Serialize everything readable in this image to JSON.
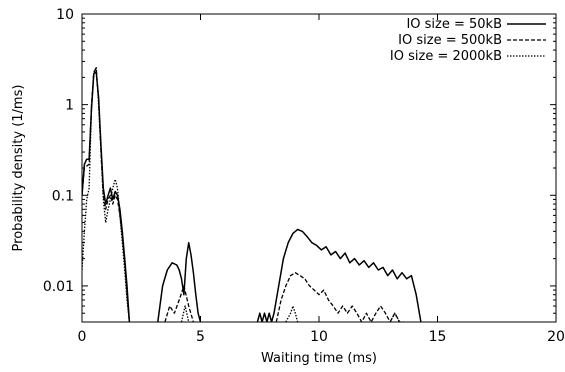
{
  "chart_data": {
    "type": "line",
    "xlabel": "Waiting time (ms)",
    "ylabel": "Probability density (1/ms)",
    "xlim": [
      0,
      20
    ],
    "ylim": [
      0.004,
      10
    ],
    "yscale": "log",
    "grid": false,
    "legend_position": "top-right",
    "x_ticks": [
      0,
      5,
      10,
      15,
      20
    ],
    "x_tick_labels": [
      "0",
      "5",
      "10",
      "15",
      "20"
    ],
    "y_ticks": [
      0.01,
      0.1,
      1,
      10
    ],
    "y_tick_labels": [
      "0.01",
      "0.1",
      "1",
      "10"
    ],
    "series": [
      {
        "name": "IO size = 50kB",
        "style": "solid",
        "segments": [
          [
            [
              0,
              0.1
            ],
            [
              0.1,
              0.22
            ],
            [
              0.2,
              0.25
            ],
            [
              0.3,
              0.25
            ],
            [
              0.4,
              0.9
            ],
            [
              0.5,
              2.2
            ],
            [
              0.6,
              2.3
            ],
            [
              0.7,
              1.2
            ],
            [
              0.8,
              0.35
            ],
            [
              0.9,
              0.12
            ],
            [
              1.0,
              0.08
            ],
            [
              1.1,
              0.1
            ],
            [
              1.2,
              0.12
            ],
            [
              1.3,
              0.09
            ],
            [
              1.4,
              0.11
            ],
            [
              1.5,
              0.1
            ],
            [
              1.6,
              0.07
            ],
            [
              1.7,
              0.04
            ],
            [
              1.8,
              0.02
            ],
            [
              1.9,
              0.01
            ],
            [
              2.0,
              0.004
            ]
          ],
          [
            [
              3.2,
              0.004
            ],
            [
              3.4,
              0.01
            ],
            [
              3.6,
              0.015
            ],
            [
              3.8,
              0.018
            ],
            [
              4.0,
              0.017
            ],
            [
              4.1,
              0.015
            ],
            [
              4.2,
              0.012
            ],
            [
              4.3,
              0.008
            ],
            [
              4.4,
              0.02
            ],
            [
              4.5,
              0.03
            ],
            [
              4.6,
              0.022
            ],
            [
              4.7,
              0.014
            ],
            [
              4.8,
              0.008
            ],
            [
              4.9,
              0.005
            ],
            [
              5.0,
              0.004
            ]
          ],
          [
            [
              7.4,
              0.004
            ],
            [
              7.5,
              0.005
            ],
            [
              7.6,
              0.004
            ],
            [
              7.7,
              0.005
            ],
            [
              7.8,
              0.004
            ],
            [
              7.9,
              0.005
            ],
            [
              8.0,
              0.004
            ],
            [
              8.1,
              0.005
            ],
            [
              8.3,
              0.01
            ],
            [
              8.5,
              0.02
            ],
            [
              8.7,
              0.03
            ],
            [
              8.9,
              0.038
            ],
            [
              9.1,
              0.042
            ],
            [
              9.3,
              0.04
            ],
            [
              9.5,
              0.035
            ],
            [
              9.7,
              0.03
            ],
            [
              9.9,
              0.028
            ],
            [
              10.1,
              0.025
            ],
            [
              10.3,
              0.027
            ],
            [
              10.5,
              0.022
            ],
            [
              10.7,
              0.024
            ],
            [
              10.9,
              0.02
            ],
            [
              11.1,
              0.023
            ],
            [
              11.3,
              0.018
            ],
            [
              11.5,
              0.02
            ],
            [
              11.7,
              0.017
            ],
            [
              11.9,
              0.019
            ],
            [
              12.1,
              0.016
            ],
            [
              12.3,
              0.018
            ],
            [
              12.5,
              0.015
            ],
            [
              12.7,
              0.016
            ],
            [
              12.9,
              0.013
            ],
            [
              13.1,
              0.015
            ],
            [
              13.3,
              0.012
            ],
            [
              13.5,
              0.014
            ],
            [
              13.7,
              0.012
            ],
            [
              13.9,
              0.013
            ],
            [
              14.1,
              0.008
            ],
            [
              14.3,
              0.004
            ]
          ]
        ]
      },
      {
        "name": "IO size = 500kB",
        "style": "dashed",
        "segments": [
          [
            [
              0,
              0.1
            ],
            [
              0.1,
              0.2
            ],
            [
              0.2,
              0.21
            ],
            [
              0.3,
              0.22
            ],
            [
              0.4,
              1.0
            ],
            [
              0.5,
              2.3
            ],
            [
              0.6,
              2.5
            ],
            [
              0.7,
              1.1
            ],
            [
              0.8,
              0.3
            ],
            [
              0.9,
              0.1
            ],
            [
              1.0,
              0.07
            ],
            [
              1.1,
              0.09
            ],
            [
              1.2,
              0.1
            ],
            [
              1.3,
              0.08
            ],
            [
              1.4,
              0.1
            ],
            [
              1.5,
              0.09
            ],
            [
              1.6,
              0.06
            ],
            [
              1.7,
              0.035
            ],
            [
              1.8,
              0.018
            ],
            [
              1.9,
              0.008
            ],
            [
              2.0,
              0.004
            ]
          ],
          [
            [
              3.5,
              0.004
            ],
            [
              3.7,
              0.006
            ],
            [
              3.9,
              0.005
            ],
            [
              4.1,
              0.007
            ],
            [
              4.3,
              0.01
            ],
            [
              4.5,
              0.006
            ],
            [
              4.7,
              0.004
            ]
          ],
          [
            [
              8.2,
              0.004
            ],
            [
              8.4,
              0.007
            ],
            [
              8.6,
              0.01
            ],
            [
              8.8,
              0.013
            ],
            [
              9.0,
              0.014
            ],
            [
              9.2,
              0.013
            ],
            [
              9.4,
              0.012
            ],
            [
              9.6,
              0.01
            ],
            [
              9.8,
              0.009
            ],
            [
              10.0,
              0.008
            ],
            [
              10.2,
              0.009
            ],
            [
              10.4,
              0.007
            ],
            [
              10.6,
              0.006
            ],
            [
              10.8,
              0.005
            ],
            [
              11.0,
              0.006
            ],
            [
              11.2,
              0.005
            ],
            [
              11.4,
              0.006
            ],
            [
              11.6,
              0.005
            ],
            [
              11.8,
              0.004
            ],
            [
              12.0,
              0.005
            ],
            [
              12.2,
              0.004
            ],
            [
              12.4,
              0.005
            ],
            [
              12.6,
              0.006
            ],
            [
              12.8,
              0.005
            ],
            [
              13.0,
              0.004
            ],
            [
              13.2,
              0.005
            ],
            [
              13.4,
              0.004
            ],
            [
              13.6,
              0.004
            ]
          ]
        ]
      },
      {
        "name": "IO size = 2000kB",
        "style": "dotted",
        "segments": [
          [
            [
              0,
              0.015
            ],
            [
              0.1,
              0.04
            ],
            [
              0.2,
              0.09
            ],
            [
              0.3,
              0.12
            ],
            [
              0.4,
              0.9
            ],
            [
              0.5,
              2.2
            ],
            [
              0.6,
              2.6
            ],
            [
              0.7,
              1.0
            ],
            [
              0.8,
              0.3
            ],
            [
              0.9,
              0.09
            ],
            [
              1.0,
              0.05
            ],
            [
              1.1,
              0.07
            ],
            [
              1.2,
              0.09
            ],
            [
              1.3,
              0.12
            ],
            [
              1.4,
              0.15
            ],
            [
              1.5,
              0.12
            ],
            [
              1.6,
              0.06
            ],
            [
              1.7,
              0.03
            ],
            [
              1.8,
              0.015
            ],
            [
              1.9,
              0.007
            ],
            [
              2.0,
              0.004
            ]
          ],
          [
            [
              4.2,
              0.004
            ],
            [
              4.35,
              0.006
            ],
            [
              4.5,
              0.004
            ]
          ],
          [
            [
              8.6,
              0.004
            ],
            [
              8.8,
              0.005
            ],
            [
              8.9,
              0.006
            ],
            [
              9.0,
              0.005
            ],
            [
              9.1,
              0.004
            ]
          ],
          [
            [
              13.0,
              0.004
            ],
            [
              13.2,
              0.005
            ],
            [
              13.4,
              0.004
            ]
          ]
        ]
      }
    ]
  }
}
